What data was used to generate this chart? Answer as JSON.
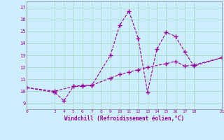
{
  "xlabel": "Windchill (Refroidissement éolien,°C)",
  "xlim": [
    0,
    21
  ],
  "ylim": [
    8.5,
    17.5
  ],
  "xticks": [
    0,
    3,
    4,
    5,
    6,
    7,
    8,
    9,
    10,
    11,
    12,
    13,
    14,
    15,
    16,
    17,
    18,
    21
  ],
  "yticks": [
    9,
    10,
    11,
    12,
    13,
    14,
    15,
    16,
    17
  ],
  "bg_color": "#cceeff",
  "grid_color": "#aaddcc",
  "line_color": "#990099",
  "line1_x": [
    0,
    3,
    4,
    5,
    6,
    7,
    9,
    10,
    11,
    12,
    13,
    14,
    15,
    16,
    17,
    18,
    21
  ],
  "line1_y": [
    10.3,
    9.9,
    9.2,
    10.4,
    10.5,
    10.5,
    13.0,
    15.5,
    16.7,
    14.4,
    9.9,
    13.5,
    14.9,
    14.6,
    13.3,
    12.1,
    12.8
  ],
  "line2_x": [
    0,
    3,
    5,
    6,
    7,
    9,
    10,
    11,
    12,
    13,
    15,
    16,
    17,
    18,
    21
  ],
  "line2_y": [
    10.3,
    10.0,
    10.4,
    10.4,
    10.5,
    11.1,
    11.4,
    11.6,
    11.8,
    12.0,
    12.3,
    12.5,
    12.1,
    12.2,
    12.8
  ],
  "marker": "+"
}
